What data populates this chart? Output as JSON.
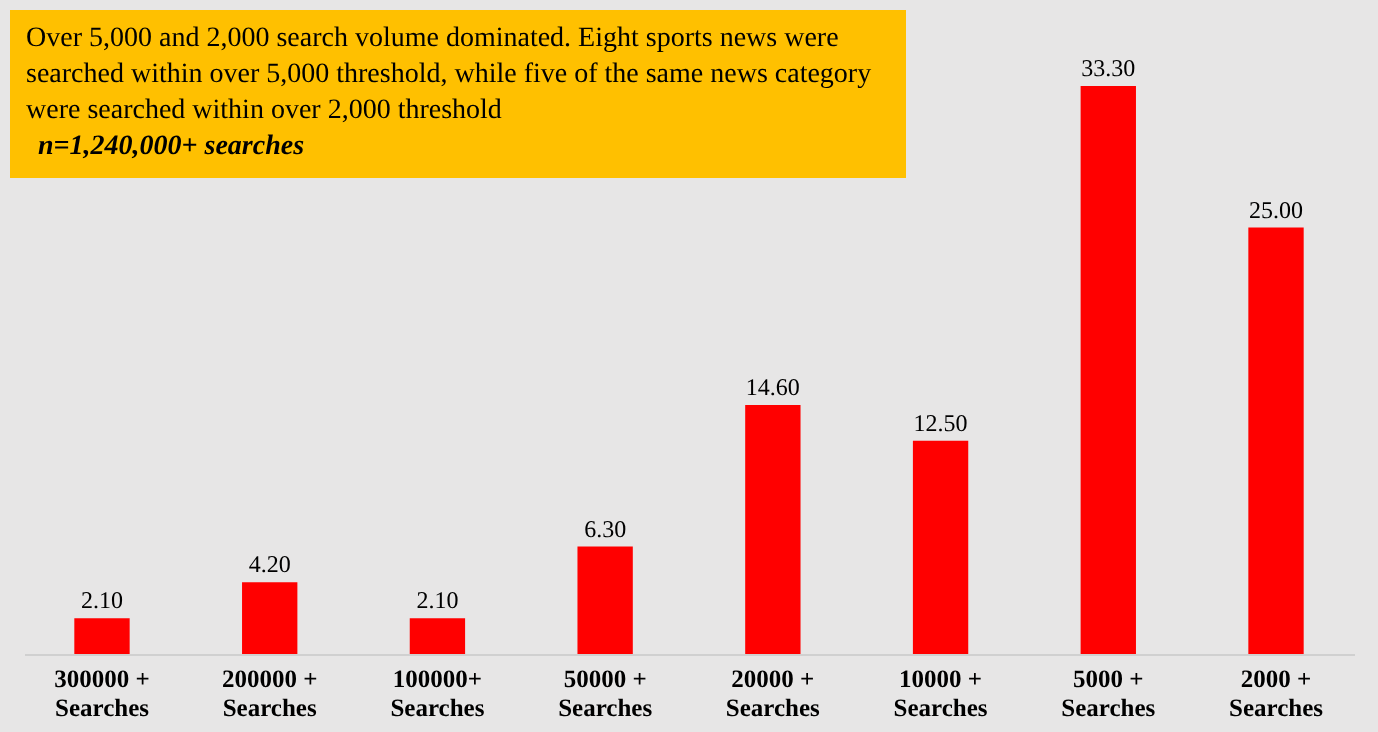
{
  "chart_data": {
    "type": "bar",
    "title": "Over 5,000 and 2,000 search volume dominated. Eight sports news were searched within over 5,000 threshold, while five of the same news category were searched within over 2,000 threshold",
    "subtitle": "n=1,240,000+ searches",
    "categories": [
      "300000 + Searches",
      "200000 + Searches",
      "100000+ Searches",
      "50000 + Searches",
      "20000 + Searches",
      "10000 + Searches",
      "5000 + Searches",
      "2000 + Searches"
    ],
    "values": [
      2.1,
      4.2,
      2.1,
      6.3,
      14.6,
      12.5,
      33.3,
      25.0
    ],
    "value_labels": [
      "2.10",
      "4.20",
      "2.10",
      "6.30",
      "14.60",
      "12.50",
      "33.30",
      "25.00"
    ],
    "color": "#ff0000"
  }
}
